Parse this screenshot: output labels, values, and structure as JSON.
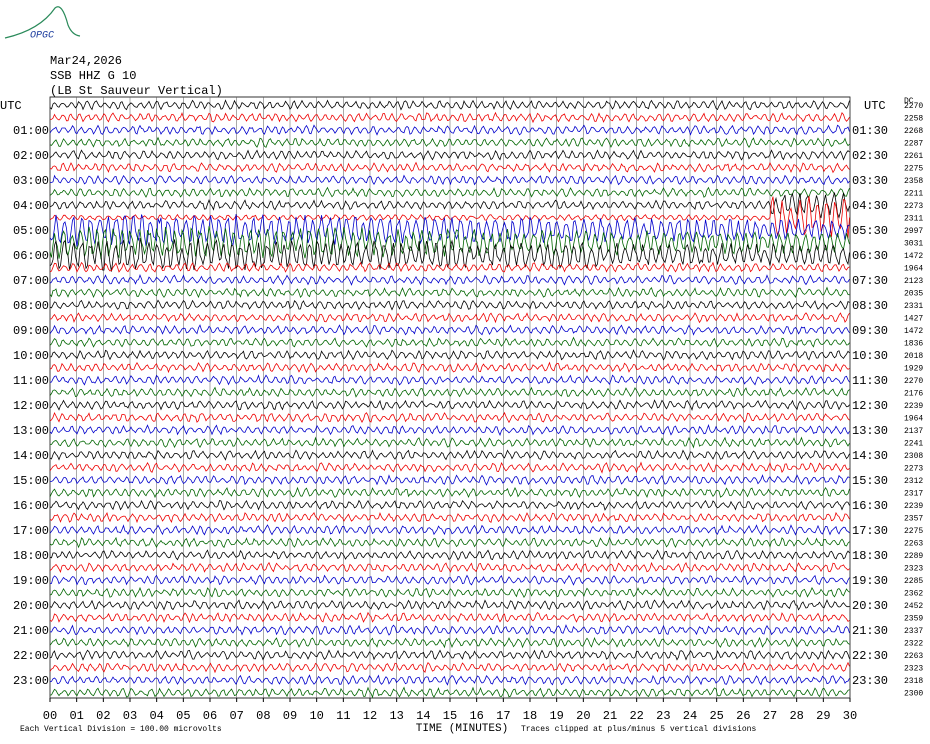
{
  "header": {
    "logo": "OPGC",
    "date": "Mar24,2026",
    "station": "SSB HHZ G 10",
    "description": "(LB St Sauveur Vertical)",
    "left_unit": "UTC",
    "right_unit": "UTC",
    "dc_label": "DC"
  },
  "left_labels": [
    "01:00",
    "02:00",
    "03:00",
    "04:00",
    "05:00",
    "06:00",
    "07:00",
    "08:00",
    "09:00",
    "10:00",
    "11:00",
    "12:00",
    "13:00",
    "14:00",
    "15:00",
    "16:00",
    "17:00",
    "18:00",
    "19:00",
    "20:00",
    "21:00",
    "22:00",
    "23:00"
  ],
  "right_labels": [
    "01:30",
    "02:30",
    "03:30",
    "04:30",
    "05:30",
    "06:30",
    "07:30",
    "08:30",
    "09:30",
    "10:30",
    "11:30",
    "12:30",
    "13:30",
    "14:30",
    "15:30",
    "16:30",
    "17:30",
    "18:30",
    "19:30",
    "20:30",
    "21:30",
    "22:30",
    "23:30"
  ],
  "dc_values": [
    "2270",
    "2258",
    "2268",
    "2287",
    "2261",
    "2275",
    "2358",
    "2211",
    "2273",
    "2311",
    "2997",
    "3031",
    "1472",
    "1964",
    "2123",
    "2035",
    "2331",
    "1427",
    "1472",
    "1836",
    "2018",
    "1929",
    "2270",
    "2176",
    "2239",
    "1964",
    "2137",
    "2241",
    "2308",
    "2273",
    "2312",
    "2317",
    "2239",
    "2357",
    "2275",
    "2263",
    "2289",
    "2323",
    "2285",
    "2362",
    "2452",
    "2359",
    "2337",
    "2322",
    "2263",
    "2323",
    "2318",
    "2300"
  ],
  "x_axis": {
    "ticks": [
      "00",
      "01",
      "02",
      "03",
      "04",
      "05",
      "06",
      "07",
      "08",
      "09",
      "10",
      "11",
      "12",
      "13",
      "14",
      "15",
      "16",
      "17",
      "18",
      "19",
      "20",
      "21",
      "22",
      "23",
      "24",
      "25",
      "26",
      "27",
      "28",
      "29",
      "30"
    ],
    "label": "TIME (MINUTES)"
  },
  "footer": {
    "scale": "Each Vertical Division =  100.00 microvolts",
    "clip": "Traces clipped at plus/minus 5 vertical divisions"
  }
}
